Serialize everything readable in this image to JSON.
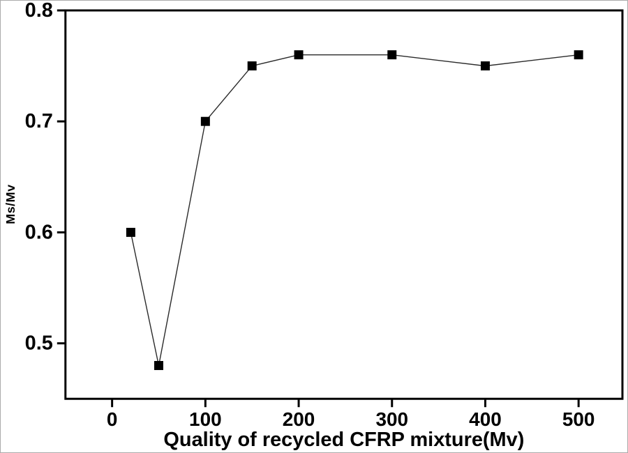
{
  "figure": {
    "background": "#ffffff",
    "border_color": "#ababab"
  },
  "chart_data": {
    "type": "line",
    "title": "",
    "xlabel": "Quality of recycled CFRP mixture(Mv)",
    "ylabel": "Ms/Mv",
    "x": [
      20,
      50,
      100,
      150,
      200,
      300,
      400,
      500
    ],
    "y": [
      0.6,
      0.48,
      0.7,
      0.75,
      0.76,
      0.76,
      0.75,
      0.76
    ],
    "xticks": [
      0,
      100,
      200,
      300,
      400,
      500
    ],
    "xtick_labels": [
      "0",
      "100",
      "200",
      "300",
      "400",
      "500"
    ],
    "yticks": [
      0.5,
      0.6,
      0.7,
      0.8
    ],
    "ytick_labels": [
      "0.5",
      "0.6",
      "0.7",
      "0.8"
    ],
    "xlim": [
      -50,
      547
    ],
    "ylim": [
      0.45,
      0.8
    ],
    "grid": false,
    "legend": null,
    "marker": "square",
    "marker_size": 13,
    "marker_color": "#000000",
    "line_color": "#2a2a2a",
    "line_width": 1.4,
    "axis_color": "#000000",
    "axis_width": 3,
    "tick_length": 12
  }
}
